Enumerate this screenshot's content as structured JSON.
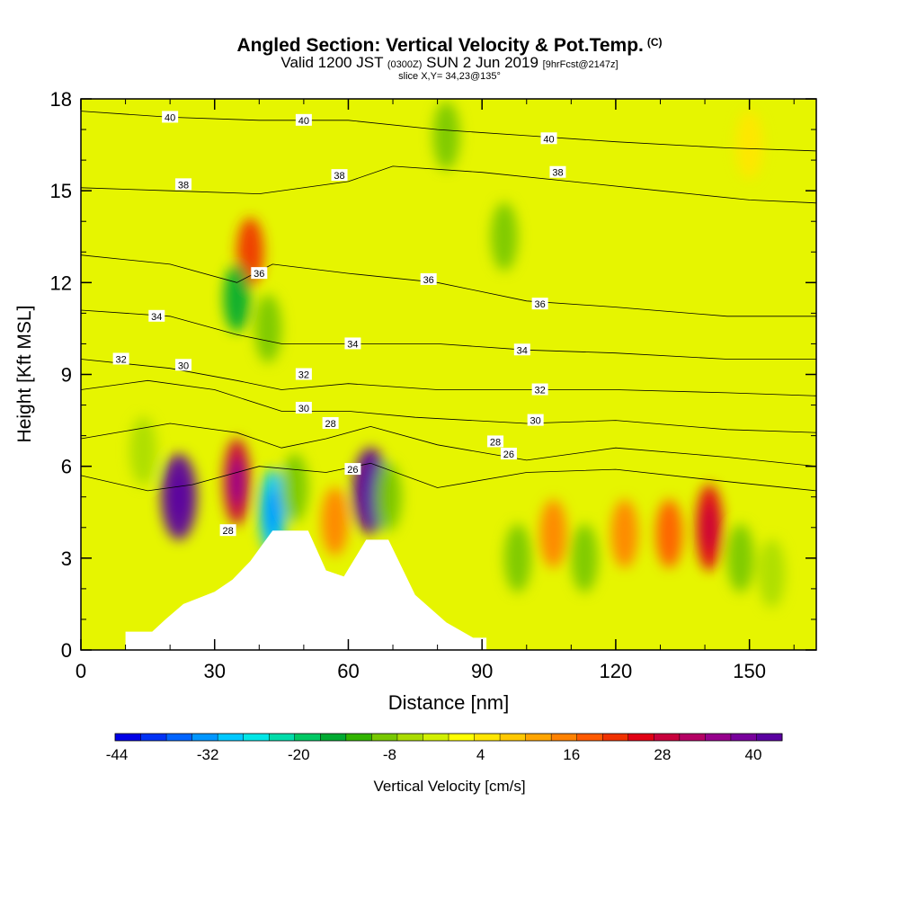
{
  "title": {
    "main": "Angled Section: Vertical Velocity & Pot.Temp.",
    "copyright": "(C)",
    "valid_prefix": "Valid 1200 JST",
    "utc": "(0300Z)",
    "date": "SUN 2 Jun 2019",
    "forecast": "[9hrFcst@2147z]",
    "slice": "slice X,Y= 34,23@135°"
  },
  "chart_data": {
    "type": "heatmap",
    "xlabel": "Distance [nm]",
    "ylabel": "Height [Kft MSL]",
    "xlim": [
      0,
      165
    ],
    "ylim": [
      0,
      18
    ],
    "xticks": [
      "0",
      "30",
      "60",
      "90",
      "120",
      "150"
    ],
    "yticks": [
      "0",
      "3",
      "6",
      "9",
      "12",
      "15",
      "18"
    ],
    "colorbar": {
      "label": "Vertical Velocity [cm/s]",
      "ticks": [
        "-44",
        "-32",
        "-20",
        "-8",
        "4",
        "16",
        "28",
        "40"
      ],
      "levels": [
        -44,
        40
      ],
      "colors": [
        "#0000e6",
        "#0032f5",
        "#0064ff",
        "#0096ff",
        "#00c8ff",
        "#00e6e6",
        "#00dcaa",
        "#00c864",
        "#00aa32",
        "#32b400",
        "#78c800",
        "#aadc00",
        "#d2f000",
        "#ffff00",
        "#ffe600",
        "#ffc800",
        "#ffa500",
        "#ff8200",
        "#ff5a00",
        "#f03200",
        "#e10014",
        "#c8003c",
        "#b40064",
        "#96008c",
        "#78009c",
        "#5a00a0"
      ]
    },
    "velocity_cells": [
      {
        "x": 22,
        "y": 5.0,
        "value": 44
      },
      {
        "x": 35,
        "y": 5.5,
        "value": 28
      },
      {
        "x": 43,
        "y": 4.5,
        "value": -30
      },
      {
        "x": 48,
        "y": 5.3,
        "value": -12
      },
      {
        "x": 57,
        "y": 4.2,
        "value": 14
      },
      {
        "x": 65,
        "y": 5.2,
        "value": 40
      },
      {
        "x": 69,
        "y": 5.0,
        "value": -10
      },
      {
        "x": 38,
        "y": 13.0,
        "value": 20
      },
      {
        "x": 35,
        "y": 11.5,
        "value": -18
      },
      {
        "x": 42,
        "y": 10.5,
        "value": -10
      },
      {
        "x": 95,
        "y": 13.5,
        "value": -12
      },
      {
        "x": 82,
        "y": 16.8,
        "value": -10
      },
      {
        "x": 98,
        "y": 3.0,
        "value": -10
      },
      {
        "x": 106,
        "y": 3.8,
        "value": 14
      },
      {
        "x": 113,
        "y": 3.0,
        "value": -10
      },
      {
        "x": 122,
        "y": 3.8,
        "value": 14
      },
      {
        "x": 132,
        "y": 3.8,
        "value": 16
      },
      {
        "x": 141,
        "y": 4.0,
        "value": 24
      },
      {
        "x": 148,
        "y": 3.0,
        "value": -12
      },
      {
        "x": 155,
        "y": 2.5,
        "value": -6
      },
      {
        "x": 14,
        "y": 6.5,
        "value": -8
      },
      {
        "x": 150,
        "y": 16.5,
        "value": 2
      }
    ],
    "terrain": [
      [
        10,
        0.6
      ],
      [
        16,
        0.6
      ],
      [
        19,
        1.0
      ],
      [
        23,
        1.5
      ],
      [
        30,
        1.9
      ],
      [
        34,
        2.3
      ],
      [
        38,
        2.9
      ],
      [
        43,
        3.9
      ],
      [
        51,
        3.9
      ],
      [
        55,
        2.6
      ],
      [
        59,
        2.4
      ],
      [
        64,
        3.6
      ],
      [
        69,
        3.6
      ],
      [
        75,
        1.8
      ],
      [
        82,
        0.9
      ],
      [
        88,
        0.4
      ],
      [
        91,
        0.4
      ]
    ],
    "isentropes": [
      {
        "label": "40",
        "points": [
          [
            0,
            17.6
          ],
          [
            20,
            17.4
          ],
          [
            40,
            17.3
          ],
          [
            60,
            17.3
          ],
          [
            80,
            17.0
          ],
          [
            100,
            16.8
          ],
          [
            120,
            16.6
          ],
          [
            145,
            16.4
          ],
          [
            165,
            16.3
          ]
        ]
      },
      {
        "label": "38",
        "points": [
          [
            0,
            15.1
          ],
          [
            20,
            15.0
          ],
          [
            40,
            14.9
          ],
          [
            60,
            15.3
          ],
          [
            70,
            15.8
          ],
          [
            90,
            15.6
          ],
          [
            110,
            15.3
          ],
          [
            130,
            15.0
          ],
          [
            150,
            14.7
          ],
          [
            165,
            14.6
          ]
        ]
      },
      {
        "label": "36",
        "points": [
          [
            0,
            12.9
          ],
          [
            20,
            12.6
          ],
          [
            35,
            12.0
          ],
          [
            43,
            12.6
          ],
          [
            60,
            12.3
          ],
          [
            80,
            12.0
          ],
          [
            100,
            11.4
          ],
          [
            120,
            11.2
          ],
          [
            145,
            10.9
          ],
          [
            165,
            10.9
          ]
        ]
      },
      {
        "label": "34",
        "points": [
          [
            0,
            11.1
          ],
          [
            20,
            10.9
          ],
          [
            35,
            10.3
          ],
          [
            45,
            10.0
          ],
          [
            60,
            10.0
          ],
          [
            80,
            10.0
          ],
          [
            100,
            9.8
          ],
          [
            120,
            9.7
          ],
          [
            145,
            9.5
          ],
          [
            165,
            9.5
          ]
        ]
      },
      {
        "label": "32",
        "points": [
          [
            0,
            9.5
          ],
          [
            20,
            9.2
          ],
          [
            35,
            8.8
          ],
          [
            45,
            8.5
          ],
          [
            60,
            8.7
          ],
          [
            80,
            8.5
          ],
          [
            100,
            8.5
          ],
          [
            120,
            8.5
          ],
          [
            145,
            8.4
          ],
          [
            165,
            8.3
          ]
        ]
      },
      {
        "label": "30",
        "points": [
          [
            0,
            8.5
          ],
          [
            15,
            8.8
          ],
          [
            30,
            8.5
          ],
          [
            45,
            7.8
          ],
          [
            60,
            7.8
          ],
          [
            75,
            7.6
          ],
          [
            100,
            7.4
          ],
          [
            120,
            7.5
          ],
          [
            145,
            7.2
          ],
          [
            165,
            7.1
          ]
        ]
      },
      {
        "label": "28",
        "points": [
          [
            0,
            6.9
          ],
          [
            20,
            7.4
          ],
          [
            35,
            7.1
          ],
          [
            45,
            6.6
          ],
          [
            55,
            6.9
          ],
          [
            65,
            7.3
          ],
          [
            80,
            6.7
          ],
          [
            100,
            6.2
          ],
          [
            120,
            6.6
          ],
          [
            145,
            6.3
          ],
          [
            165,
            6.0
          ]
        ]
      },
      {
        "label": "26",
        "points": [
          [
            0,
            5.7
          ],
          [
            15,
            5.2
          ],
          [
            25,
            5.4
          ],
          [
            40,
            6.0
          ],
          [
            55,
            5.8
          ],
          [
            65,
            6.1
          ],
          [
            80,
            5.3
          ],
          [
            100,
            5.8
          ],
          [
            120,
            5.9
          ],
          [
            145,
            5.5
          ],
          [
            165,
            5.2
          ]
        ]
      }
    ],
    "isentrope_labels": [
      {
        "text": "40",
        "x": 20,
        "y": 17.4
      },
      {
        "text": "40",
        "x": 50,
        "y": 17.3
      },
      {
        "text": "40",
        "x": 105,
        "y": 16.7
      },
      {
        "text": "38",
        "x": 23,
        "y": 15.2
      },
      {
        "text": "38",
        "x": 58,
        "y": 15.5
      },
      {
        "text": "38",
        "x": 107,
        "y": 15.6
      },
      {
        "text": "36",
        "x": 40,
        "y": 12.3
      },
      {
        "text": "36",
        "x": 78,
        "y": 12.1
      },
      {
        "text": "36",
        "x": 103,
        "y": 11.3
      },
      {
        "text": "34",
        "x": 17,
        "y": 10.9
      },
      {
        "text": "34",
        "x": 61,
        "y": 10.0
      },
      {
        "text": "34",
        "x": 99,
        "y": 9.8
      },
      {
        "text": "32",
        "x": 9,
        "y": 9.5
      },
      {
        "text": "32",
        "x": 50,
        "y": 9.0
      },
      {
        "text": "32",
        "x": 103,
        "y": 8.5
      },
      {
        "text": "30",
        "x": 23,
        "y": 9.3
      },
      {
        "text": "30",
        "x": 50,
        "y": 7.9
      },
      {
        "text": "30",
        "x": 102,
        "y": 7.5
      },
      {
        "text": "28",
        "x": 56,
        "y": 7.4
      },
      {
        "text": "28",
        "x": 93,
        "y": 6.8
      },
      {
        "text": "28",
        "x": 33,
        "y": 3.9
      },
      {
        "text": "26",
        "x": 61,
        "y": 5.9
      },
      {
        "text": "26",
        "x": 96,
        "y": 6.4
      }
    ]
  }
}
